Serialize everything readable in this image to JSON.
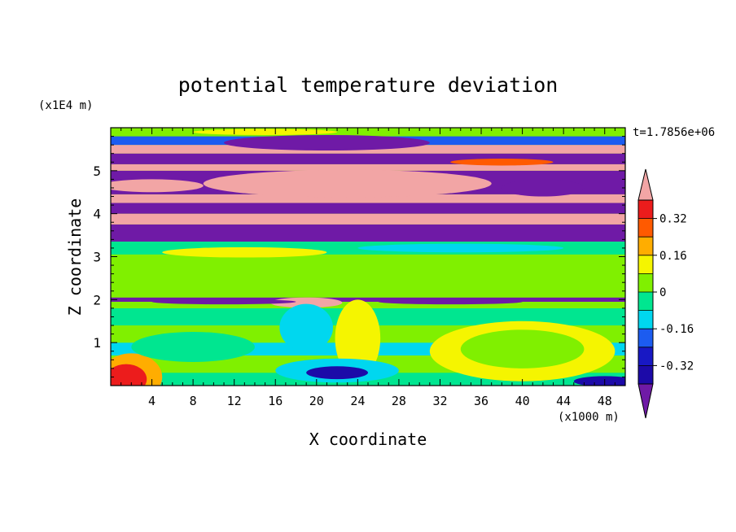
{
  "chart_data": {
    "type": "heatmap",
    "title": "potential temperature deviation",
    "xlabel": "X coordinate",
    "ylabel": "Z coordinate",
    "x_unit": "(x1000 m)",
    "y_unit": "(x1E4 m)",
    "time_label": "t=1.7856e+06",
    "xlim": [
      0,
      50
    ],
    "ylim": [
      0,
      6
    ],
    "x_ticks": [
      4,
      8,
      12,
      16,
      20,
      24,
      28,
      32,
      36,
      40,
      44,
      48
    ],
    "y_ticks": [
      1,
      2,
      3,
      4,
      5
    ],
    "colorbar": {
      "levels": [
        -0.4,
        -0.32,
        -0.24,
        -0.16,
        -0.08,
        0,
        0.08,
        0.16,
        0.24,
        0.32,
        0.4
      ],
      "tick_labels": [
        "0.32",
        "0.16",
        "0",
        "-0.16",
        "-0.32"
      ],
      "tick_values": [
        0.32,
        0.16,
        0,
        -0.16,
        -0.32
      ],
      "colors": [
        "#1c0aa8",
        "#1818c4",
        "#1c5cf0",
        "#00d7ef",
        "#00e690",
        "#80f000",
        "#f5f500",
        "#ffad00",
        "#ff5a00",
        "#ec1c1c"
      ],
      "under_color": "#6f1aa6",
      "over_color": "#f2a5a5"
    },
    "bands": [
      {
        "z": [
          0.0,
          0.3
        ],
        "value": -0.04
      },
      {
        "z": [
          0.3,
          0.7
        ],
        "value": 0.02
      },
      {
        "z": [
          0.7,
          1.0
        ],
        "value": -0.1
      },
      {
        "z": [
          1.0,
          1.4
        ],
        "value": 0.03
      },
      {
        "z": [
          1.4,
          1.8
        ],
        "value": -0.02
      },
      {
        "z": [
          1.8,
          1.95
        ],
        "value": 0.06
      },
      {
        "z": [
          1.95,
          2.05
        ],
        "value": -0.5
      },
      {
        "z": [
          2.05,
          2.4
        ],
        "value": 0.05
      },
      {
        "z": [
          2.4,
          2.75
        ],
        "value": 0.03
      },
      {
        "z": [
          2.75,
          3.05
        ],
        "value": 0.06
      },
      {
        "z": [
          3.05,
          3.35
        ],
        "value": -0.06
      },
      {
        "z": [
          3.35,
          3.75
        ],
        "value": -0.5
      },
      {
        "z": [
          3.75,
          4.0
        ],
        "value": 0.5
      },
      {
        "z": [
          4.0,
          4.25
        ],
        "value": -0.5
      },
      {
        "z": [
          4.25,
          4.45
        ],
        "value": 0.5
      },
      {
        "z": [
          4.45,
          5.0
        ],
        "value": -0.5
      },
      {
        "z": [
          5.0,
          5.15
        ],
        "value": 0.5
      },
      {
        "z": [
          5.15,
          5.4
        ],
        "value": -0.5
      },
      {
        "z": [
          5.4,
          5.6
        ],
        "value": 0.5
      },
      {
        "z": [
          5.6,
          5.8
        ],
        "value": -0.2
      },
      {
        "z": [
          5.8,
          6.0
        ],
        "value": 0.07
      }
    ],
    "features": [
      {
        "shape": "ellipse",
        "cx": 23,
        "cz": 4.7,
        "rx": 14,
        "rz": 0.32,
        "value": 0.5
      },
      {
        "shape": "ellipse",
        "cx": 42,
        "cz": 4.6,
        "rx": 4,
        "rz": 0.2,
        "value": -0.5
      },
      {
        "shape": "ellipse",
        "cx": 4,
        "cz": 4.65,
        "rx": 5,
        "rz": 0.15,
        "value": 0.5
      },
      {
        "shape": "ellipse",
        "cx": 21,
        "cz": 5.65,
        "rx": 10,
        "rz": 0.18,
        "value": -0.5
      },
      {
        "shape": "ellipse",
        "cx": 15,
        "cz": 5.9,
        "rx": 7,
        "rz": 0.07,
        "value": 0.1
      },
      {
        "shape": "ellipse",
        "cx": 38,
        "cz": 5.2,
        "rx": 5,
        "rz": 0.08,
        "value": 0.28
      },
      {
        "shape": "ellipse",
        "cx": 13,
        "cz": 3.1,
        "rx": 8,
        "rz": 0.12,
        "value": 0.09
      },
      {
        "shape": "ellipse",
        "cx": 34,
        "cz": 3.2,
        "rx": 10,
        "rz": 0.1,
        "value": -0.13
      },
      {
        "shape": "ellipse",
        "cx": 19,
        "cz": 1.93,
        "rx": 3.5,
        "rz": 0.12,
        "value": 0.5
      },
      {
        "shape": "ellipse",
        "cx": 11,
        "cz": 1.95,
        "rx": 7,
        "rz": 0.06,
        "value": -0.5
      },
      {
        "shape": "ellipse",
        "cx": 33,
        "cz": 1.95,
        "rx": 7,
        "rz": 0.06,
        "value": -0.5
      },
      {
        "shape": "ellipse",
        "cx": 19,
        "cz": 1.4,
        "rx": 1.6,
        "rz": 0.35,
        "value": -0.38
      },
      {
        "shape": "ellipse",
        "cx": 19,
        "cz": 1.35,
        "rx": 2.6,
        "rz": 0.55,
        "value": -0.11
      },
      {
        "shape": "ellipse",
        "cx": 24,
        "cz": 1.4,
        "rx": 1.5,
        "rz": 0.5,
        "value": 0.2
      },
      {
        "shape": "ellipse",
        "cx": 24,
        "cz": 1.1,
        "rx": 2.2,
        "rz": 0.9,
        "value": 0.12
      },
      {
        "shape": "ellipse",
        "cx": 22,
        "cz": 0.35,
        "rx": 6,
        "rz": 0.28,
        "value": -0.15
      },
      {
        "shape": "ellipse",
        "cx": 22,
        "cz": 0.3,
        "rx": 3,
        "rz": 0.15,
        "value": -0.34
      },
      {
        "shape": "ellipse",
        "cx": 40,
        "cz": 0.8,
        "rx": 9,
        "rz": 0.7,
        "value": 0.11
      },
      {
        "shape": "ellipse",
        "cx": 40,
        "cz": 0.85,
        "rx": 6,
        "rz": 0.45,
        "value": 0.04
      },
      {
        "shape": "ellipse",
        "cx": 2,
        "cz": 0.2,
        "rx": 3,
        "rz": 0.55,
        "value": 0.2
      },
      {
        "shape": "ellipse",
        "cx": 1.5,
        "cz": 0.15,
        "rx": 2,
        "rz": 0.35,
        "value": 0.36
      },
      {
        "shape": "ellipse",
        "cx": 8,
        "cz": 0.9,
        "rx": 6,
        "rz": 0.35,
        "value": -0.04
      },
      {
        "shape": "ellipse",
        "cx": 48,
        "cz": 0.1,
        "rx": 3,
        "rz": 0.12,
        "value": -0.34
      }
    ]
  }
}
